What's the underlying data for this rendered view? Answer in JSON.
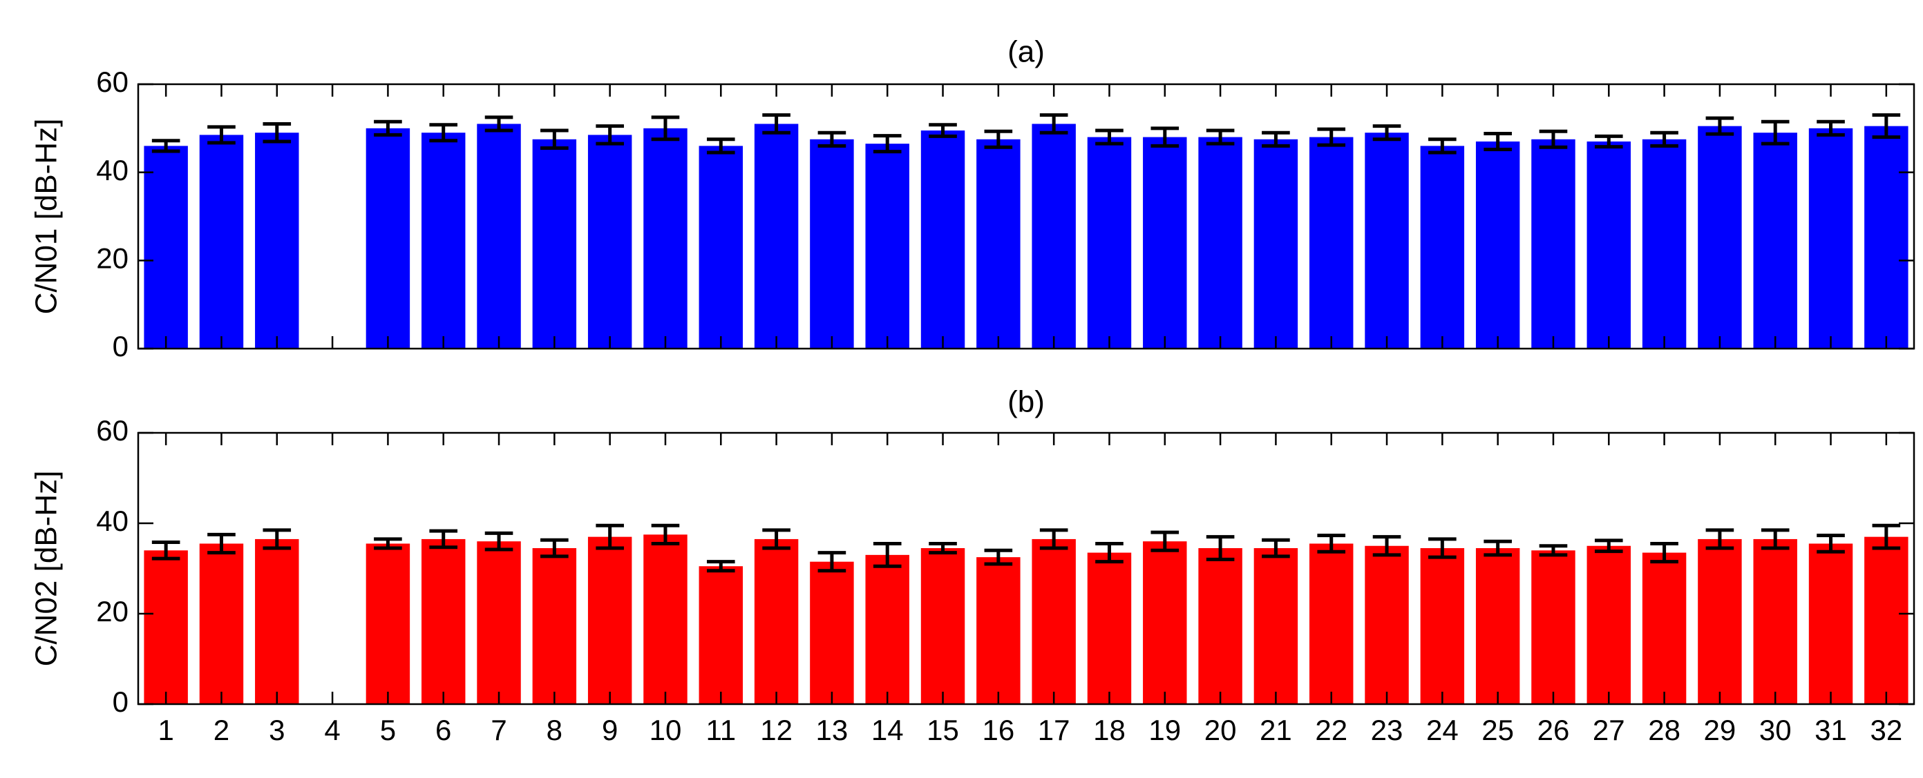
{
  "chart_data": [
    {
      "type": "bar",
      "title": "(a)",
      "ylabel": "C/N01 [dB-Hz]",
      "xlabel": "",
      "ylim": [
        0,
        60
      ],
      "yticks": [
        0,
        20,
        40,
        60
      ],
      "categories": [
        "1",
        "2",
        "3",
        "4",
        "5",
        "6",
        "7",
        "8",
        "9",
        "10",
        "11",
        "12",
        "13",
        "14",
        "15",
        "16",
        "17",
        "18",
        "19",
        "20",
        "21",
        "22",
        "23",
        "24",
        "25",
        "26",
        "27",
        "28",
        "29",
        "30",
        "31",
        "32"
      ],
      "show_category_labels": false,
      "grid": false,
      "bar_color": "#0000ff",
      "error_color": "#000000",
      "values": [
        46,
        48.5,
        49,
        null,
        50,
        49,
        51,
        47.5,
        48.5,
        50,
        46,
        51,
        47.5,
        46.5,
        49.5,
        47.5,
        51,
        48,
        48,
        48,
        47.5,
        48,
        49,
        46,
        47,
        47.5,
        47,
        47.5,
        50.5,
        49,
        50,
        50.5
      ],
      "errors": [
        1.2,
        1.8,
        2.0,
        null,
        1.5,
        1.8,
        1.5,
        2.0,
        2.0,
        2.5,
        1.5,
        2.0,
        1.5,
        1.8,
        1.3,
        1.8,
        2.0,
        1.5,
        2.0,
        1.5,
        1.5,
        1.8,
        1.5,
        1.5,
        1.8,
        1.8,
        1.2,
        1.5,
        1.8,
        2.5,
        1.5,
        2.5
      ]
    },
    {
      "type": "bar",
      "title": "(b)",
      "ylabel": "C/N02 [dB-Hz]",
      "xlabel": "",
      "ylim": [
        0,
        60
      ],
      "yticks": [
        0,
        20,
        40,
        60
      ],
      "categories": [
        "1",
        "2",
        "3",
        "4",
        "5",
        "6",
        "7",
        "8",
        "9",
        "10",
        "11",
        "12",
        "13",
        "14",
        "15",
        "16",
        "17",
        "18",
        "19",
        "20",
        "21",
        "22",
        "23",
        "24",
        "25",
        "26",
        "27",
        "28",
        "29",
        "30",
        "31",
        "32"
      ],
      "show_category_labels": true,
      "grid": false,
      "bar_color": "#ff0000",
      "error_color": "#000000",
      "values": [
        34,
        35.5,
        36.5,
        null,
        35.5,
        36.5,
        36,
        34.5,
        37,
        37.5,
        30.5,
        36.5,
        31.5,
        33,
        34.5,
        32.5,
        36.5,
        33.5,
        36,
        34.5,
        34.5,
        35.5,
        35,
        34.5,
        34.5,
        34,
        35,
        33.5,
        36.5,
        36.5,
        35.5,
        37
      ],
      "errors": [
        1.8,
        2.0,
        2.0,
        null,
        1.0,
        1.8,
        1.8,
        1.8,
        2.5,
        2.0,
        1.0,
        2.0,
        2.0,
        2.5,
        1.0,
        1.5,
        2.0,
        2.0,
        2.0,
        2.5,
        1.8,
        1.8,
        2.0,
        2.0,
        1.5,
        1.0,
        1.2,
        2.0,
        2.0,
        2.0,
        1.8,
        2.5
      ]
    }
  ]
}
